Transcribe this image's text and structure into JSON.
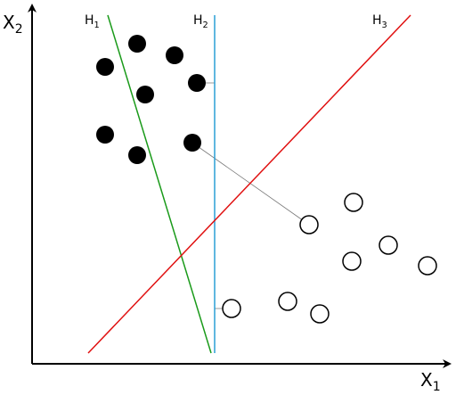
{
  "axes": {
    "x_label": {
      "text": "X",
      "sub": "1"
    },
    "y_label": {
      "text": "X",
      "sub": "2"
    }
  },
  "hyperplanes": [
    {
      "text": "H",
      "sub": "1"
    },
    {
      "text": "H",
      "sub": "2"
    },
    {
      "text": "H",
      "sub": "3"
    }
  ]
}
